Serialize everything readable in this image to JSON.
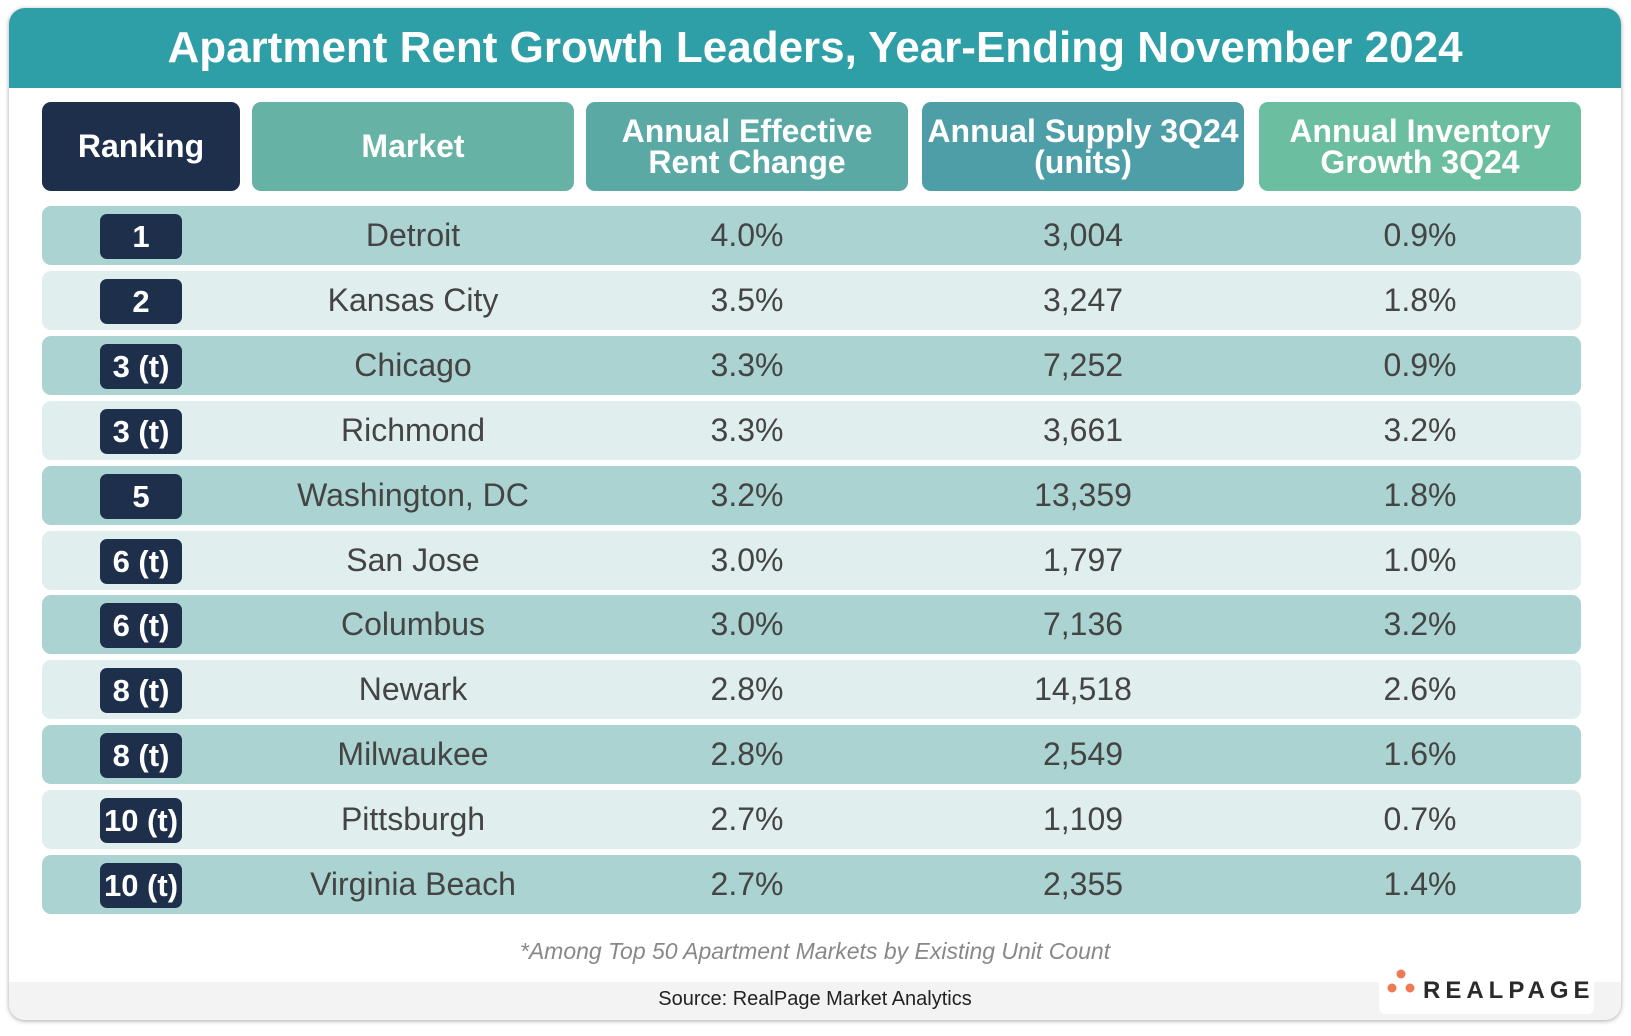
{
  "title": "Apartment Rent Growth Leaders, Year-Ending November 2024",
  "headers": {
    "ranking": "Ranking",
    "market": "Market",
    "rent_change": [
      "Annual Effective",
      "Rent Change"
    ],
    "supply": [
      "Annual Supply 3Q24",
      "(units)"
    ],
    "inventory": [
      "Annual Inventory",
      "Growth 3Q24"
    ]
  },
  "rows": [
    {
      "rank": "1",
      "market": "Detroit",
      "rent": "4.0%",
      "supply": "3,004",
      "inventory": "0.9%"
    },
    {
      "rank": "2",
      "market": "Kansas City",
      "rent": "3.5%",
      "supply": "3,247",
      "inventory": "1.8%"
    },
    {
      "rank": "3 (t)",
      "market": "Chicago",
      "rent": "3.3%",
      "supply": "7,252",
      "inventory": "0.9%"
    },
    {
      "rank": "3 (t)",
      "market": "Richmond",
      "rent": "3.3%",
      "supply": "3,661",
      "inventory": "3.2%"
    },
    {
      "rank": "5",
      "market": "Washington, DC",
      "rent": "3.2%",
      "supply": "13,359",
      "inventory": "1.8%"
    },
    {
      "rank": "6 (t)",
      "market": "San Jose",
      "rent": "3.0%",
      "supply": "1,797",
      "inventory": "1.0%"
    },
    {
      "rank": "6 (t)",
      "market": "Columbus",
      "rent": "3.0%",
      "supply": "7,136",
      "inventory": "3.2%"
    },
    {
      "rank": "8 (t)",
      "market": "Newark",
      "rent": "2.8%",
      "supply": "14,518",
      "inventory": "2.6%"
    },
    {
      "rank": "8 (t)",
      "market": "Milwaukee",
      "rent": "2.8%",
      "supply": "2,549",
      "inventory": "1.6%"
    },
    {
      "rank": "10 (t)",
      "market": "Pittsburgh",
      "rent": "2.7%",
      "supply": "1,109",
      "inventory": "0.7%"
    },
    {
      "rank": "10 (t)",
      "market": "Virginia Beach",
      "rent": "2.7%",
      "supply": "2,355",
      "inventory": "1.4%"
    }
  ],
  "footnote": "*Among Top 50 Apartment Markets by Existing Unit Count",
  "source": "Source: RealPage Market Analytics",
  "logo_text": "REALPAGE",
  "colors": {
    "title_bar": "#2e9fa6",
    "ranking": "#1d2f4b",
    "logo_dots": "#ee7a55"
  }
}
